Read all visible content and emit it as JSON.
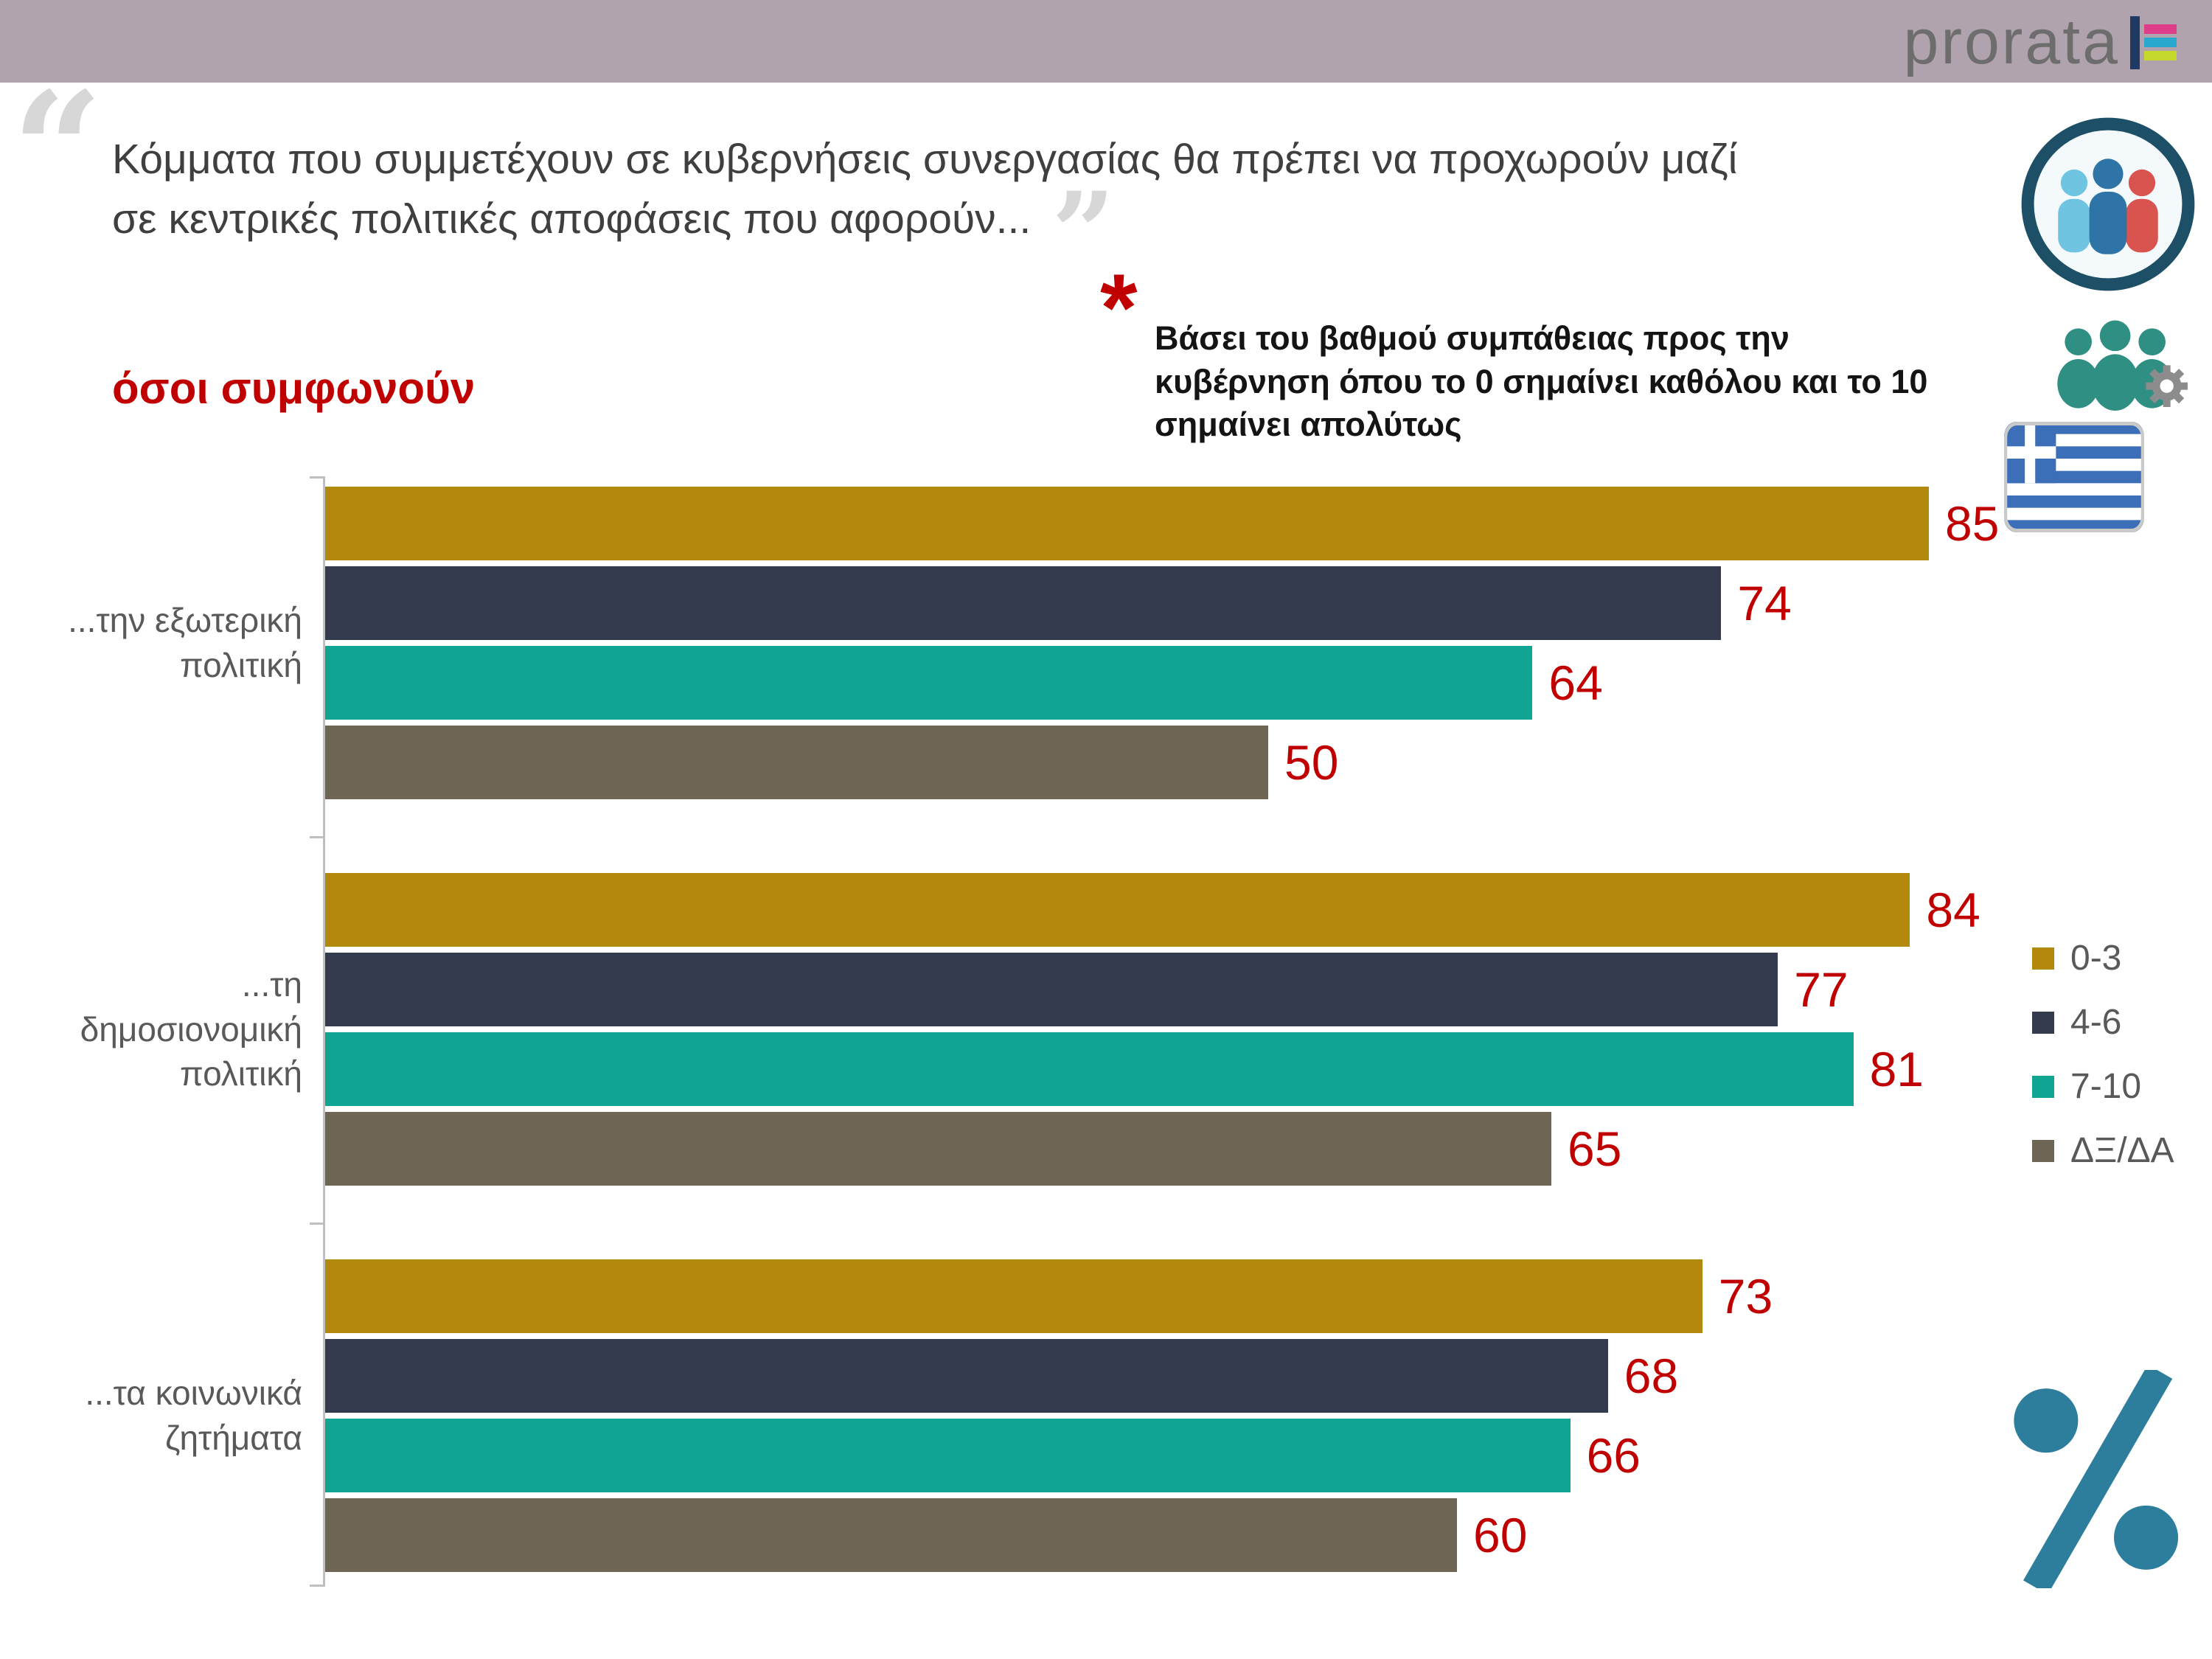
{
  "colors": {
    "header_band": "#B1A3AD",
    "accent_red": "#C00000",
    "title_gray": "#3F3F3F",
    "label_gray": "#595959",
    "axis_gray": "#BFBFBF",
    "percent_teal": "#2D7E9D"
  },
  "header": {
    "logo_text": "prorata"
  },
  "quote": {
    "open_mark": "“",
    "close_mark": "”",
    "line1": "Κόμματα που συμμετέχουν σε κυβερνήσεις συνεργασίας θα πρέπει να προχωρούν μαζί",
    "line2": "σε κεντρικές πολιτικές αποφάσεις που αφορούν..."
  },
  "subtitle": "όσοι συμφωνούν",
  "footnote": {
    "marker": "*",
    "text": "Βάσει του βαθμού συμπάθειας προς την κυβέρνηση όπου το 0 σημαίνει καθόλου και το 10 σημαίνει απολύτως"
  },
  "chart_data": {
    "type": "bar",
    "orientation": "horizontal",
    "title": "όσοι συμφωνούν",
    "categories": [
      "...την εξωτερική πολιτική",
      "...τη δημοσιονομική πολιτική",
      "...τα κοινωνικά ζητήματα"
    ],
    "series": [
      {
        "name": "0-3",
        "color": "#B3890D",
        "values": [
          85,
          84,
          73
        ]
      },
      {
        "name": "4-6",
        "color": "#353B4F",
        "values": [
          74,
          77,
          68
        ]
      },
      {
        "name": "7-10",
        "color": "#10A492",
        "values": [
          64,
          81,
          66
        ]
      },
      {
        "name": "ΔΞ/ΔΑ",
        "color": "#6E6654",
        "values": [
          50,
          65,
          60
        ]
      }
    ],
    "value_label_color": "#C00000",
    "xlim": [
      0,
      100
    ],
    "grid": false,
    "legend_position": "right"
  }
}
